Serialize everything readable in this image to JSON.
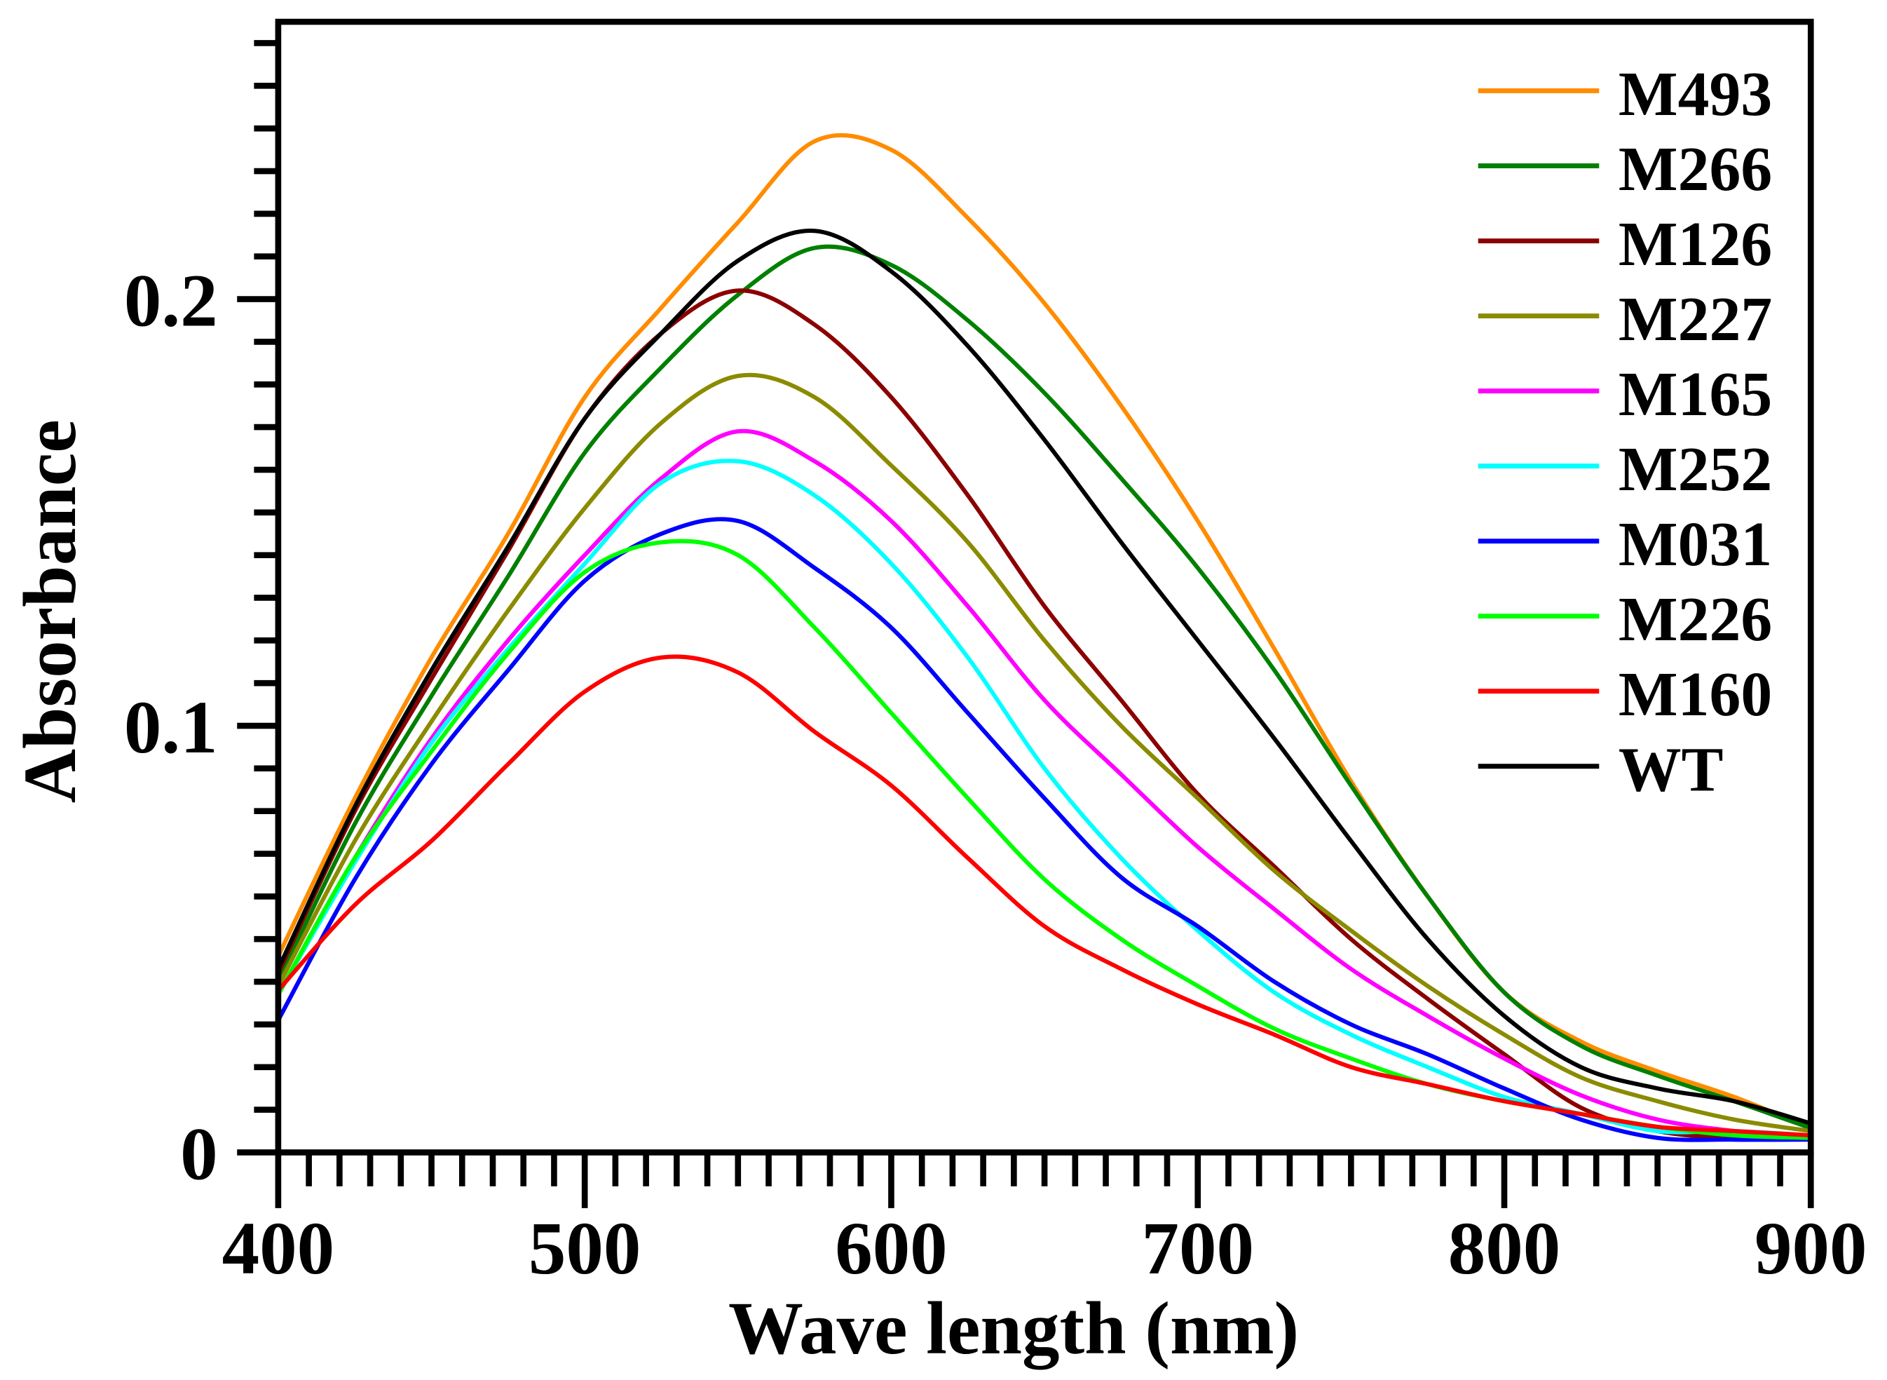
{
  "chart_data": {
    "type": "line",
    "title": "",
    "xlabel": "Wave length (nm)",
    "ylabel": "Absorbance",
    "xlim": [
      400,
      900
    ],
    "ylim": [
      0,
      0.265
    ],
    "grid": false,
    "legend_position": "top-right",
    "x_ticks": [
      400,
      500,
      600,
      700,
      800,
      900
    ],
    "x_tick_labels": [
      "400",
      "500",
      "600",
      "700",
      "800",
      "900"
    ],
    "y_ticks": [
      0,
      0.1,
      0.2
    ],
    "y_tick_labels": [
      "0",
      "0.1",
      "0.2"
    ],
    "x": [
      400,
      425,
      450,
      475,
      500,
      525,
      550,
      575,
      600,
      625,
      650,
      675,
      700,
      725,
      750,
      775,
      800,
      825,
      850,
      875,
      900
    ],
    "series": [
      {
        "name": "M493",
        "color": "#ff8c00",
        "values": [
          0.046,
          0.083,
          0.116,
          0.145,
          0.177,
          0.198,
          0.218,
          0.237,
          0.235,
          0.219,
          0.199,
          0.175,
          0.148,
          0.118,
          0.087,
          0.06,
          0.0375,
          0.026,
          0.019,
          0.013,
          0.0057
        ]
      },
      {
        "name": "M266",
        "color": "#008000",
        "values": [
          0.04,
          0.077,
          0.107,
          0.135,
          0.164,
          0.184,
          0.201,
          0.212,
          0.208,
          0.195,
          0.178,
          0.158,
          0.137,
          0.113,
          0.086,
          0.06,
          0.0375,
          0.025,
          0.018,
          0.012,
          0.0057
        ]
      },
      {
        "name": "M126",
        "color": "#8b0000",
        "values": [
          0.042,
          0.08,
          0.111,
          0.141,
          0.172,
          0.192,
          0.202,
          0.194,
          0.177,
          0.154,
          0.128,
          0.106,
          0.084,
          0.067,
          0.05,
          0.036,
          0.023,
          0.0105,
          0.005,
          0.0034,
          0.0034
        ]
      },
      {
        "name": "M227",
        "color": "#8b8b00",
        "values": [
          0.039,
          0.073,
          0.101,
          0.127,
          0.151,
          0.171,
          0.182,
          0.177,
          0.161,
          0.143,
          0.12,
          0.1,
          0.083,
          0.066,
          0.052,
          0.039,
          0.0276,
          0.0176,
          0.012,
          0.0077,
          0.005
        ]
      },
      {
        "name": "M165",
        "color": "#ff00ff",
        "values": [
          0.037,
          0.069,
          0.097,
          0.12,
          0.14,
          0.158,
          0.169,
          0.162,
          0.148,
          0.128,
          0.106,
          0.0886,
          0.0716,
          0.057,
          0.043,
          0.032,
          0.022,
          0.0134,
          0.0077,
          0.005,
          0.0034
        ]
      },
      {
        "name": "M252",
        "color": "#00ffff",
        "values": [
          0.037,
          0.068,
          0.096,
          0.118,
          0.138,
          0.157,
          0.162,
          0.154,
          0.138,
          0.116,
          0.09,
          0.069,
          0.052,
          0.0375,
          0.0276,
          0.02,
          0.013,
          0.009,
          0.005,
          0.005,
          0.004
        ]
      },
      {
        "name": "M031",
        "color": "#0000ff",
        "values": [
          0.031,
          0.064,
          0.091,
          0.113,
          0.134,
          0.145,
          0.148,
          0.137,
          0.123,
          0.103,
          0.083,
          0.0645,
          0.053,
          0.04,
          0.03,
          0.023,
          0.015,
          0.0077,
          0.0034,
          0.003,
          0.003
        ]
      },
      {
        "name": "M226",
        "color": "#00ff00",
        "values": [
          0.037,
          0.069,
          0.094,
          0.117,
          0.136,
          0.143,
          0.14,
          0.123,
          0.103,
          0.083,
          0.064,
          0.05,
          0.039,
          0.029,
          0.022,
          0.016,
          0.012,
          0.009,
          0.006,
          0.004,
          0.0034
        ]
      },
      {
        "name": "M160",
        "color": "#ff0000",
        "values": [
          0.038,
          0.058,
          0.073,
          0.091,
          0.108,
          0.116,
          0.1125,
          0.0986,
          0.086,
          0.069,
          0.053,
          0.043,
          0.0347,
          0.0276,
          0.02,
          0.016,
          0.012,
          0.009,
          0.006,
          0.005,
          0.004
        ]
      },
      {
        "name": "WT",
        "color": "#000000",
        "values": [
          0.043,
          0.081,
          0.113,
          0.142,
          0.172,
          0.192,
          0.209,
          0.216,
          0.2065,
          0.189,
          0.167,
          0.143,
          0.12,
          0.097,
          0.073,
          0.05,
          0.032,
          0.02,
          0.015,
          0.012,
          0.0068
        ]
      }
    ]
  }
}
